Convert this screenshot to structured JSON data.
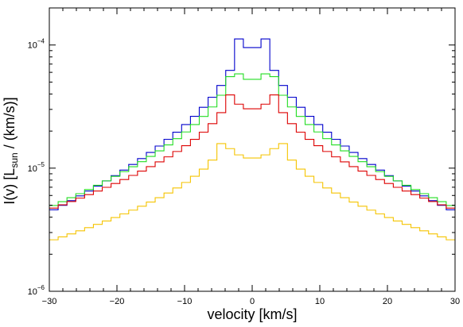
{
  "chart_data": {
    "type": "line",
    "step": true,
    "xlabel": "velocity [km/s]",
    "ylabel": {
      "prefix": "I(v)  [L",
      "subscript": "sun",
      "suffix": " / (km/s)]"
    },
    "xlim": [
      -30,
      30
    ],
    "ylim": [
      1e-06,
      0.0002
    ],
    "yscale": "log",
    "x_ticks": [
      {
        "value": -30,
        "label": "−30"
      },
      {
        "value": -20,
        "label": "−20"
      },
      {
        "value": -10,
        "label": "−10"
      },
      {
        "value": 0,
        "label": "0"
      },
      {
        "value": 10,
        "label": "10"
      },
      {
        "value": 20,
        "label": "20"
      },
      {
        "value": 30,
        "label": "30"
      }
    ],
    "y_ticks": [
      {
        "value": 1e-06,
        "mantissa": "10",
        "exponent": "−6"
      },
      {
        "value": 1e-05,
        "mantissa": "10",
        "exponent": "−5"
      },
      {
        "value": 0.0001,
        "mantissa": "10",
        "exponent": "−4"
      }
    ],
    "grid": false,
    "series": [
      {
        "color": "#0000cc",
        "peak_v": 2.0,
        "peak": 0.000112,
        "edge": 4.4e-06,
        "shape": "flat"
      },
      {
        "color": "#22dd22",
        "peak_v": 3.0,
        "peak": 6.8e-05,
        "edge": 4.8e-06,
        "shape": "double",
        "center": 5.2e-05
      },
      {
        "color": "#dd0000",
        "peak_v": 3.5,
        "peak": 4.1e-05,
        "edge": 4.6e-06,
        "shape": "double",
        "center": 3e-05
      },
      {
        "color": "#f5c400",
        "peak_v": 4.5,
        "peak": 1.7e-05,
        "edge": 2.55e-06,
        "shape": "double",
        "center": 1.2e-05
      }
    ]
  }
}
